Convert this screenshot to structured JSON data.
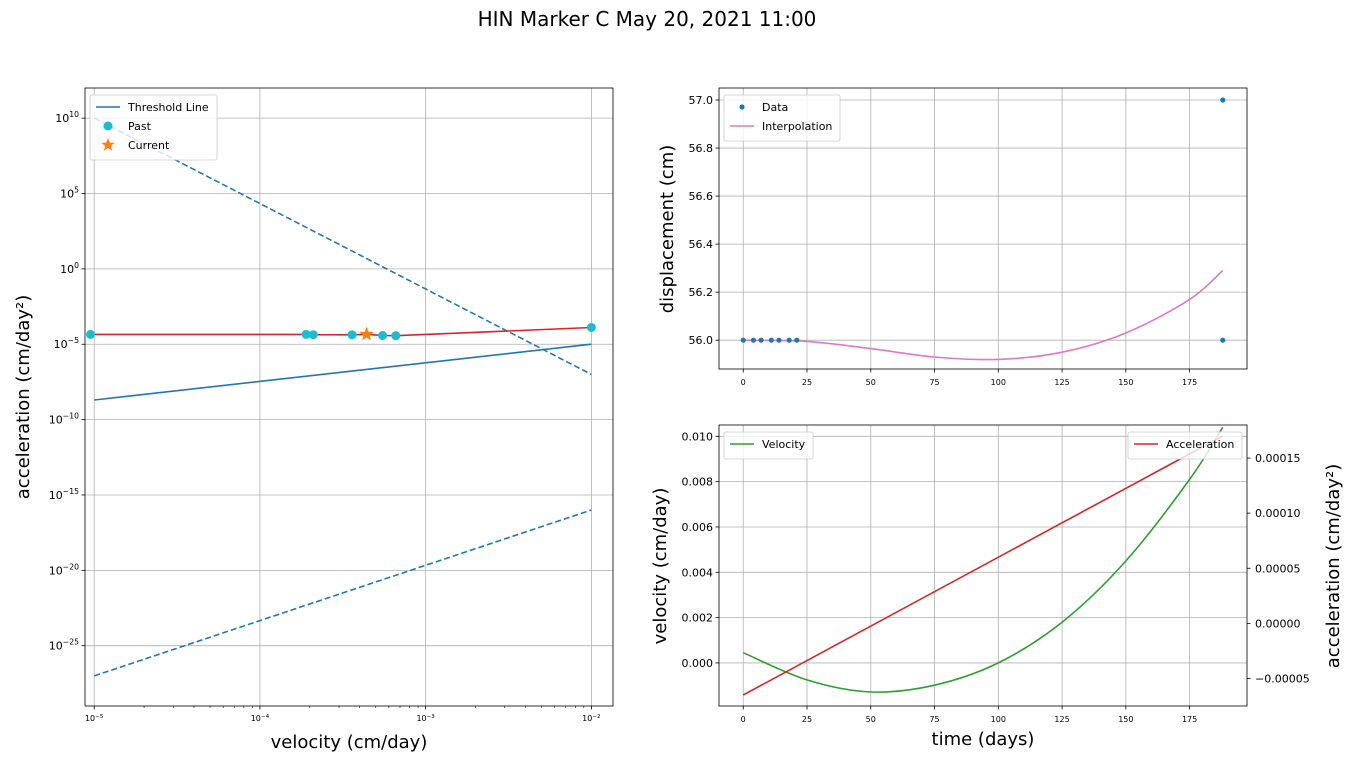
{
  "figure": {
    "title": "HIN Marker C May 20, 2021 11:00"
  },
  "colors": {
    "blue": "#1f77b4",
    "red": "#d62728",
    "cyan": "#17becf",
    "orange": "#ff7f0e",
    "pink": "#e377c2",
    "green": "#2ca02c",
    "grid": "#b0b0b0"
  },
  "chart_data": [
    {
      "type": "line",
      "panel": "acceleration-vs-velocity",
      "xlabel": "velocity (cm/day)",
      "ylabel": "acceleration (cm/day²)",
      "xscale": "log",
      "yscale": "log",
      "xlim": [
        8.8e-06,
        0.0135
      ],
      "ylim": [
        1e-29,
        1000000000000.0
      ],
      "grid": true,
      "legend_position": "top-left",
      "xticks": [
        {
          "value": 1e-05,
          "base": "10",
          "exp": "−5"
        },
        {
          "value": 0.0001,
          "base": "10",
          "exp": "−4"
        },
        {
          "value": 0.001,
          "base": "10",
          "exp": "−3"
        },
        {
          "value": 0.01,
          "base": "10",
          "exp": "−2"
        }
      ],
      "yticks": [
        {
          "value": 10000000000.0,
          "base": "10",
          "exp": "10"
        },
        {
          "value": 100000.0,
          "base": "10",
          "exp": "5"
        },
        {
          "value": 1,
          "base": "10",
          "exp": "0"
        },
        {
          "value": 1e-05,
          "base": "10",
          "exp": "−5"
        },
        {
          "value": 1e-10,
          "base": "10",
          "exp": "−10"
        },
        {
          "value": 1e-15,
          "base": "10",
          "exp": "−15"
        },
        {
          "value": 1e-20,
          "base": "10",
          "exp": "−20"
        },
        {
          "value": 1e-25,
          "base": "10",
          "exp": "−25"
        }
      ],
      "series": [
        {
          "name": "Threshold Line",
          "style": "solid",
          "x": [
            1e-05,
            0.01
          ],
          "y": [
            2e-09,
            1e-05
          ]
        },
        {
          "style": "dashed",
          "x": [
            1e-05,
            0.01
          ],
          "y": [
            10000000000.0,
            1e-07
          ]
        },
        {
          "style": "dashed",
          "x": [
            1e-05,
            0.01
          ],
          "y": [
            1e-27,
            1e-16
          ]
        },
        {
          "style": "track",
          "x": [
            9.5e-06,
            0.00019,
            0.00021,
            0.00036,
            0.00044,
            0.00055,
            0.00066,
            0.01
          ],
          "y": [
            4.5e-05,
            4.5e-05,
            4.3e-05,
            4.2e-05,
            4.6e-05,
            3.8e-05,
            3.7e-05,
            0.00013
          ]
        },
        {
          "name": "Past",
          "style": "points",
          "x": [
            9.5e-06,
            0.00019,
            0.00021,
            0.00036,
            0.00055,
            0.00066,
            0.01
          ],
          "y": [
            4.5e-05,
            4.5e-05,
            4.3e-05,
            4.2e-05,
            3.8e-05,
            3.7e-05,
            0.00013
          ]
        },
        {
          "name": "Current",
          "style": "star",
          "x": [
            0.00044
          ],
          "y": [
            4.6e-05
          ]
        }
      ]
    },
    {
      "type": "line",
      "panel": "displacement-vs-time",
      "xlabel": "",
      "ylabel": "displacement (cm)",
      "xlim": [
        -9.5,
        197.5
      ],
      "ylim": [
        55.88,
        57.05
      ],
      "grid": true,
      "legend_position": "top-left",
      "xticks": [
        0,
        25,
        50,
        75,
        100,
        125,
        150,
        175
      ],
      "yticks": [
        56.0,
        56.2,
        56.4,
        56.6,
        56.8,
        57.0
      ],
      "ytick_labels": [
        "56.0",
        "56.2",
        "56.4",
        "56.6",
        "56.8",
        "57.0"
      ],
      "series": [
        {
          "name": "Data",
          "style": "points",
          "x": [
            0,
            4,
            7,
            11,
            14,
            18,
            21,
            188,
            188
          ],
          "y": [
            56.0,
            56.0,
            56.0,
            56.0,
            56.0,
            56.0,
            56.0,
            57.0,
            56.0
          ]
        },
        {
          "name": "Interpolation",
          "style": "line",
          "x": [
            0,
            25,
            50,
            75,
            100,
            125,
            150,
            175,
            188
          ],
          "y": [
            56.0,
            55.995,
            55.965,
            55.93,
            55.92,
            55.95,
            56.03,
            56.17,
            56.29
          ]
        }
      ]
    },
    {
      "type": "line",
      "panel": "velocity-acceleration-vs-time",
      "xlabel": "time (days)",
      "ylabel": "velocity (cm/day)",
      "y2label": "acceleration (cm/day²)",
      "xlim": [
        -9.5,
        197.5
      ],
      "ylim": [
        -0.0019,
        0.0105
      ],
      "y2lim": [
        -7.5e-05,
        0.00018
      ],
      "grid": true,
      "xticks": [
        0,
        25,
        50,
        75,
        100,
        125,
        150,
        175
      ],
      "yticks": [
        0.0,
        0.002,
        0.004,
        0.006,
        0.008,
        0.01
      ],
      "ytick_labels": [
        "0.000",
        "0.002",
        "0.004",
        "0.006",
        "0.008",
        "0.010"
      ],
      "y2ticks": [
        -5e-05,
        0.0,
        5e-05,
        0.0001,
        0.00015
      ],
      "y2tick_labels": [
        "−0.00005",
        "0.00000",
        "0.00005",
        "0.00010",
        "0.00015"
      ],
      "series": [
        {
          "name": "Velocity",
          "axis": "left",
          "legend_position": "top-left",
          "x": [
            0,
            25,
            50,
            75,
            100,
            125,
            150,
            175,
            188
          ],
          "y": [
            0.00045,
            -0.00075,
            -0.00128,
            -0.00098,
            0.0,
            0.0018,
            0.0045,
            0.0081,
            0.0104
          ]
        },
        {
          "name": "Acceleration",
          "axis": "right",
          "legend_position": "top-right",
          "x": [
            0,
            188
          ],
          "y": [
            -6.5e-05,
            0.00017
          ]
        }
      ]
    }
  ]
}
